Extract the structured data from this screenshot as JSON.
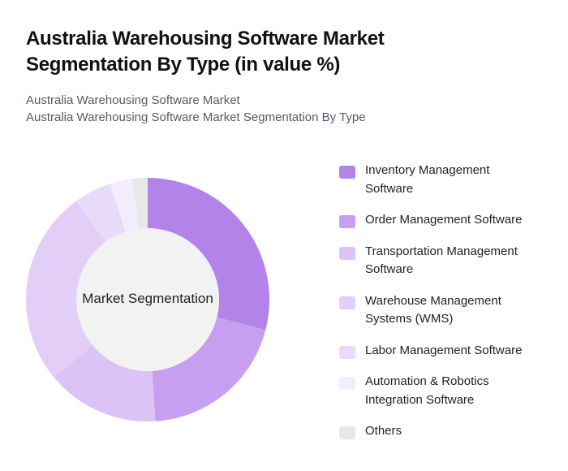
{
  "header": {
    "title": "Australia Warehousing Software Market Segmentation By Type (in value %)",
    "subtitle_lines": [
      "Australia Warehousing Software Market",
      "Australia Warehousing Software Market Segmentation By Type"
    ]
  },
  "chart": {
    "center_label": "Market Segmentation"
  },
  "chart_data": {
    "type": "pie",
    "variant": "donut",
    "title": "Australia Warehousing Software Market Segmentation By Type (in value %)",
    "center_label": "Market Segmentation",
    "categories": [
      "Inventory Management Software",
      "Order Management Software",
      "Transportation Management Software",
      "Warehouse Management Systems (WMS)",
      "Labor Management Software",
      "Automation & Robotics Integration Software",
      "Others"
    ],
    "values": [
      29,
      20,
      15,
      26,
      5,
      3,
      2
    ],
    "colors": [
      "#b383ea",
      "#c69ff0",
      "#dbc3f6",
      "#e2cef7",
      "#e8dbf9",
      "#f2ecfc",
      "#e8e8e8"
    ],
    "legend_position": "right"
  },
  "legend": {
    "items": [
      {
        "label": "Inventory Management Software",
        "color": "#b383ea"
      },
      {
        "label": "Order Management Software",
        "color": "#c69ff0"
      },
      {
        "label": "Transportation Management Software",
        "color": "#dbc3f6"
      },
      {
        "label": "Warehouse Management Systems (WMS)",
        "color": "#e2cef7"
      },
      {
        "label": "Labor Management Software",
        "color": "#e8dbf9"
      },
      {
        "label": "Automation & Robotics Integration Software",
        "color": "#f2ecfc"
      },
      {
        "label": "Others",
        "color": "#e8e8e8"
      }
    ]
  }
}
